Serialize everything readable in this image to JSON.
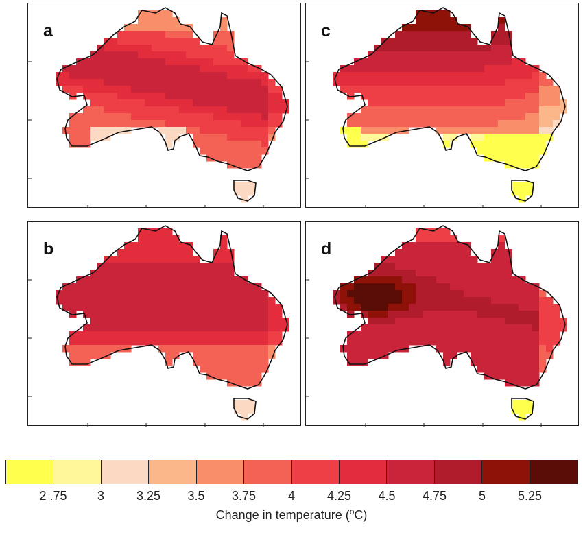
{
  "panels": [
    {
      "id": "a",
      "label": "a",
      "pattern": "hot-central-band-cool-south-coast"
    },
    {
      "id": "c",
      "label": "c",
      "pattern": "hot-north-west-cool-south-east"
    },
    {
      "id": "b",
      "label": "b",
      "pattern": "warm-fairly-uniform"
    },
    {
      "id": "d",
      "label": "d",
      "pattern": "hottest-west-interior"
    }
  ],
  "colorbar": {
    "colors": [
      "#ffff4d",
      "#fff799",
      "#fcd9c3",
      "#fbb68a",
      "#f98f6a",
      "#f46255",
      "#ee3f47",
      "#e32d3d",
      "#c9243a",
      "#b01c2b",
      "#8e1208",
      "#5a0c06"
    ],
    "ticks": [
      "2 .75",
      "3",
      "3.25",
      "3.5",
      "3.75",
      "4",
      "4.25",
      "4.5",
      "4.75",
      "5",
      "5.25"
    ],
    "title": "Change in temperature (",
    "title_sup": "o",
    "title_tail": "C)"
  },
  "legend_data": {
    "type": "colorbar",
    "variable": "Change in temperature (°C)",
    "bins": [
      {
        "range": "<2.75",
        "color": "#ffff4d"
      },
      {
        "range": "2.75-3",
        "color": "#fff799"
      },
      {
        "range": "3-3.25",
        "color": "#fcd9c3"
      },
      {
        "range": "3.25-3.5",
        "color": "#fbb68a"
      },
      {
        "range": "3.5-3.75",
        "color": "#f98f6a"
      },
      {
        "range": "3.75-4",
        "color": "#f46255"
      },
      {
        "range": "4-4.25",
        "color": "#ee3f47"
      },
      {
        "range": "4.25-4.5",
        "color": "#e32d3d"
      },
      {
        "range": "4.5-4.75",
        "color": "#c9243a"
      },
      {
        "range": "4.75-5",
        "color": "#b01c2b"
      },
      {
        "range": "5-5.25",
        "color": "#8e1208"
      },
      {
        "range": ">5.25",
        "color": "#5a0c06"
      }
    ]
  }
}
